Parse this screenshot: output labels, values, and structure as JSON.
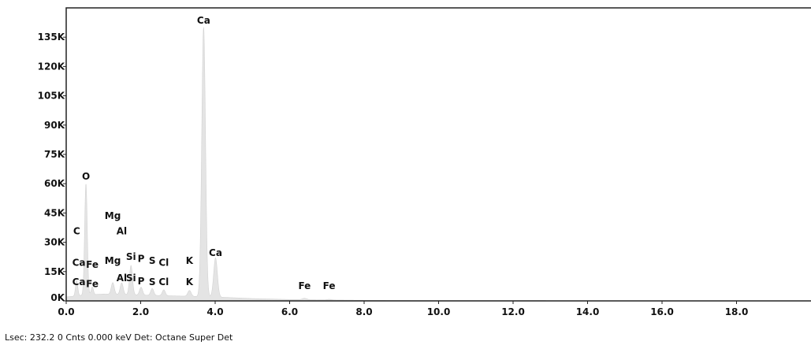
{
  "chart_data": {
    "type": "area",
    "xlim": [
      0,
      20.0
    ],
    "ylim": [
      0,
      150000
    ],
    "x_ticks": [
      0.0,
      2.0,
      4.0,
      6.0,
      8.0,
      10.0,
      12.0,
      14.0,
      16.0,
      18.0
    ],
    "x_tick_labels": [
      "0.0",
      "2.0",
      "4.0",
      "6.0",
      "8.0",
      "10.0",
      "12.0",
      "14.0",
      "16.0",
      "18.0"
    ],
    "y_ticks": [
      0,
      15000,
      30000,
      45000,
      60000,
      75000,
      90000,
      105000,
      120000,
      135000
    ],
    "y_tick_labels": [
      "0K",
      "15K",
      "30K",
      "45K",
      "60K",
      "75K",
      "90K",
      "105K",
      "120K",
      "135K"
    ],
    "grid": false,
    "fill_color": "#e4e4e4",
    "line_color": "#d2d2d2",
    "peaks": [
      {
        "energy": 0.28,
        "height": 8000,
        "width": 0.03
      },
      {
        "energy": 0.53,
        "height": 57000,
        "width": 0.035
      },
      {
        "energy": 0.7,
        "height": 4000,
        "width": 0.03
      },
      {
        "energy": 1.25,
        "height": 6000,
        "width": 0.04
      },
      {
        "energy": 1.49,
        "height": 6000,
        "width": 0.04
      },
      {
        "energy": 1.74,
        "height": 15000,
        "width": 0.04
      },
      {
        "energy": 2.01,
        "height": 4000,
        "width": 0.04
      },
      {
        "energy": 2.31,
        "height": 3500,
        "width": 0.04
      },
      {
        "energy": 2.62,
        "height": 3000,
        "width": 0.04
      },
      {
        "energy": 3.31,
        "height": 3000,
        "width": 0.045
      },
      {
        "energy": 3.69,
        "height": 138000,
        "width": 0.05
      },
      {
        "energy": 4.01,
        "height": 20000,
        "width": 0.05
      },
      {
        "energy": 6.4,
        "height": 700,
        "width": 0.06
      },
      {
        "energy": 7.06,
        "height": 300,
        "width": 0.06
      }
    ],
    "background": [
      {
        "energy": 0.0,
        "counts": 2000
      },
      {
        "energy": 0.5,
        "counts": 3000
      },
      {
        "energy": 1.0,
        "counts": 3500
      },
      {
        "energy": 2.0,
        "counts": 3000
      },
      {
        "energy": 3.0,
        "counts": 2500
      },
      {
        "energy": 4.0,
        "counts": 2000
      },
      {
        "energy": 5.0,
        "counts": 1200
      },
      {
        "energy": 6.0,
        "counts": 700
      },
      {
        "energy": 8.0,
        "counts": 300
      },
      {
        "energy": 10.0,
        "counts": 150
      },
      {
        "energy": 20.0,
        "counts": 0
      }
    ],
    "annotations": [
      {
        "text": "Ca",
        "x": 3.69,
        "y": 142000
      },
      {
        "text": "O",
        "x": 0.53,
        "y": 62000
      },
      {
        "text": "Mg",
        "x": 1.25,
        "y": 42000
      },
      {
        "text": "Al",
        "x": 1.49,
        "y": 34000
      },
      {
        "text": "C",
        "x": 0.28,
        "y": 34000
      },
      {
        "text": "Ca",
        "x": 0.34,
        "y": 18000
      },
      {
        "text": "Fe",
        "x": 0.7,
        "y": 17000
      },
      {
        "text": "Mg",
        "x": 1.25,
        "y": 19000
      },
      {
        "text": "Si",
        "x": 1.74,
        "y": 21000
      },
      {
        "text": "P",
        "x": 2.01,
        "y": 20000
      },
      {
        "text": "S",
        "x": 2.31,
        "y": 19000
      },
      {
        "text": "Cl",
        "x": 2.62,
        "y": 18000
      },
      {
        "text": "K",
        "x": 3.31,
        "y": 19000
      },
      {
        "text": "Ca",
        "x": 4.01,
        "y": 23000
      },
      {
        "text": "Ca",
        "x": 0.34,
        "y": 8000
      },
      {
        "text": "Fe",
        "x": 0.7,
        "y": 7000
      },
      {
        "text": "Al",
        "x": 1.49,
        "y": 10000
      },
      {
        "text": "Si",
        "x": 1.74,
        "y": 10000
      },
      {
        "text": "P",
        "x": 2.01,
        "y": 8500
      },
      {
        "text": "S",
        "x": 2.31,
        "y": 8000
      },
      {
        "text": "Cl",
        "x": 2.62,
        "y": 8000
      },
      {
        "text": "K",
        "x": 3.31,
        "y": 8000
      },
      {
        "text": "Fe",
        "x": 6.4,
        "y": 6000
      },
      {
        "text": "Fe",
        "x": 7.06,
        "y": 6000
      }
    ]
  },
  "footer": {
    "text": "Lsec: 232.2 0 Cnts  0.000 keV Det: Octane Super Det"
  }
}
